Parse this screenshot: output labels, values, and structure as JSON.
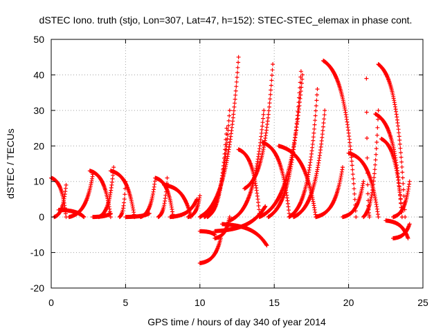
{
  "chart_data": {
    "type": "scatter",
    "title": "dSTEC Iono. truth (stjo, Lon=307, Lat=47, h=152): STEC-STEC_elemax in phase cont.",
    "xlabel": "GPS time / hours of day 340 of year 2014",
    "ylabel": "dSTEC  / TECUs",
    "xlim": [
      0,
      25
    ],
    "ylim": [
      -20,
      50
    ],
    "xticks": [
      "0",
      "5",
      "10",
      "15",
      "20",
      "25"
    ],
    "yticks": [
      "-20",
      "-10",
      "0",
      "10",
      "20",
      "30",
      "40",
      "50"
    ],
    "grid": true,
    "legend": "none",
    "marker": "plus",
    "color": "#ff0000",
    "series_shape": "arc",
    "arcs": [
      [
        0.0,
        1.0,
        11,
        0,
        0.2
      ],
      [
        0.2,
        1.0,
        0,
        9,
        0.7
      ],
      [
        0.5,
        2.2,
        2,
        0,
        1.5
      ],
      [
        1.2,
        2.8,
        0,
        12,
        2.6
      ],
      [
        2.6,
        4.0,
        13,
        0,
        3.5
      ],
      [
        2.8,
        4.0,
        0,
        1,
        3.4
      ],
      [
        3.2,
        4.2,
        0,
        14,
        4.1
      ],
      [
        4.0,
        5.6,
        13,
        0,
        5.0
      ],
      [
        4.6,
        5.0,
        0,
        10,
        4.9
      ],
      [
        5.0,
        6.6,
        0,
        1,
        5.8
      ],
      [
        6.0,
        7.0,
        0,
        11,
        6.9
      ],
      [
        7.0,
        8.2,
        11,
        0,
        7.8
      ],
      [
        7.2,
        7.8,
        0,
        11,
        7.7
      ],
      [
        7.6,
        9.4,
        9,
        0,
        8.6
      ],
      [
        8.0,
        9.8,
        0,
        5,
        9.6
      ],
      [
        9.2,
        10.0,
        0,
        6,
        9.9
      ],
      [
        10.0,
        11.4,
        -13,
        -6,
        10.4
      ],
      [
        10.0,
        12.6,
        0,
        45,
        12.5
      ],
      [
        10.3,
        12.0,
        0,
        30,
        11.9
      ],
      [
        10.5,
        11.8,
        0,
        25,
        11.7
      ],
      [
        10.0,
        11.0,
        -4,
        -5,
        10.2
      ],
      [
        11.0,
        12.0,
        -6,
        0,
        11.3
      ],
      [
        12.6,
        14.0,
        19,
        1,
        13.2
      ],
      [
        12.0,
        14.3,
        -1,
        30,
        14.3
      ],
      [
        13.0,
        14.9,
        8,
        43,
        14.9
      ],
      [
        11.5,
        14.5,
        -2,
        -8,
        11.8
      ],
      [
        11.0,
        14.4,
        -4,
        3,
        11.6
      ],
      [
        14.2,
        16.0,
        21,
        1,
        15.0
      ],
      [
        14.6,
        16.8,
        0,
        41,
        16.8
      ],
      [
        14.0,
        16.9,
        0,
        40,
        16.9
      ],
      [
        15.3,
        17.8,
        20,
        0,
        16.2
      ],
      [
        16.0,
        17.9,
        0,
        36,
        17.9
      ],
      [
        16.3,
        18.4,
        0,
        30,
        18.4
      ],
      [
        17.8,
        19.6,
        0,
        14,
        19.4
      ],
      [
        18.3,
        20.5,
        44,
        0,
        19.8
      ],
      [
        19.6,
        21.0,
        0,
        10,
        20.9
      ],
      [
        20.0,
        22.0,
        18,
        0,
        20.6
      ],
      [
        21.4,
        21.2,
        0,
        39,
        21.2
      ],
      [
        21.0,
        22.0,
        0,
        30,
        21.95
      ],
      [
        22.0,
        23.8,
        43,
        0,
        23.0
      ],
      [
        21.8,
        23.6,
        29,
        0,
        23.0
      ],
      [
        22.2,
        23.6,
        22,
        0,
        22.8
      ],
      [
        23.0,
        24.1,
        0,
        10,
        24.0
      ],
      [
        22.5,
        24.0,
        -1,
        -6,
        23.0
      ],
      [
        23.0,
        24.1,
        -6,
        -2,
        24.0
      ]
    ]
  }
}
